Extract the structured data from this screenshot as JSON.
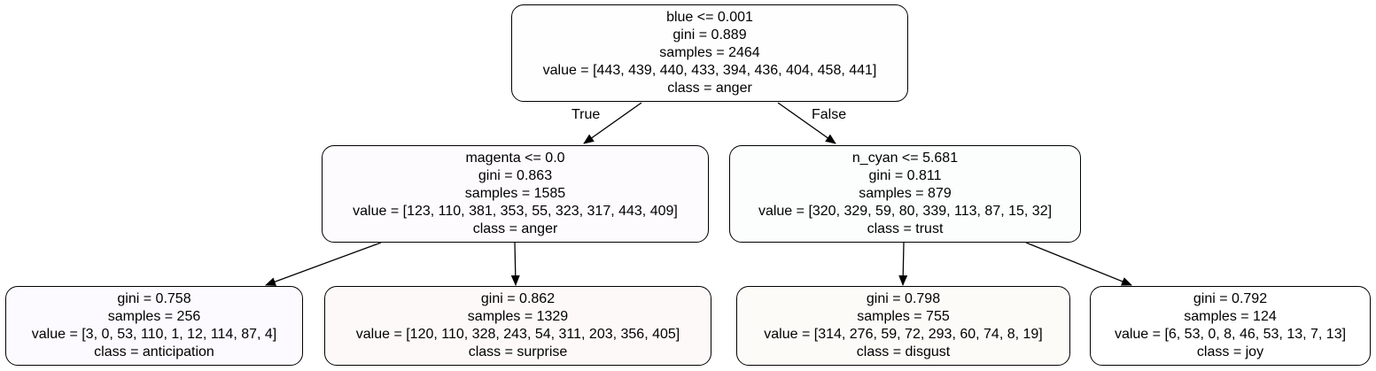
{
  "tree": {
    "nodes": {
      "root": {
        "split": "blue <= 0.001",
        "gini": "gini = 0.889",
        "samples": "samples = 2464",
        "value": "value = [443, 439, 440, 433, 394, 436, 404, 458, 441]",
        "class": "class = anger",
        "fill": "#fefeff"
      },
      "left": {
        "split": "magenta <= 0.0",
        "gini": "gini = 0.863",
        "samples": "samples = 1585",
        "value": "value = [123, 110, 381, 353, 55, 323, 317, 443, 409]",
        "class": "class = anger",
        "fill": "#fdfbfe"
      },
      "right": {
        "split": "n_cyan <= 5.681",
        "gini": "gini = 0.811",
        "samples": "samples = 879",
        "value": "value = [320, 329, 59, 80, 339, 113, 87, 15, 32]",
        "class": "class = trust",
        "fill": "#fbfefd"
      },
      "leaf1": {
        "gini": "gini = 0.758",
        "samples": "samples = 256",
        "value": "value = [3, 0, 53, 110, 1, 12, 114, 87, 4]",
        "class": "class = anticipation",
        "fill": "#fcfafe"
      },
      "leaf2": {
        "gini": "gini = 0.862",
        "samples": "samples = 1329",
        "value": "value = [120, 110, 328, 243, 54, 311, 203, 356, 405]",
        "class": "class = surprise",
        "fill": "#fdf9f9"
      },
      "leaf3": {
        "gini": "gini = 0.798",
        "samples": "samples = 755",
        "value": "value = [314, 276, 59, 72, 293, 60, 74, 8, 19]",
        "class": "class = disgust",
        "fill": "#fcfbf8"
      },
      "leaf4": {
        "gini": "gini = 0.792",
        "samples": "samples = 124",
        "value": "value = [6, 53, 0, 8, 46, 53, 13, 7, 13]",
        "class": "class = joy",
        "fill": "#ffffff"
      }
    },
    "edge_labels": {
      "true": "True",
      "false": "False"
    },
    "colors": {
      "border": "#000000",
      "edge": "#000000",
      "text": "#000000"
    }
  }
}
